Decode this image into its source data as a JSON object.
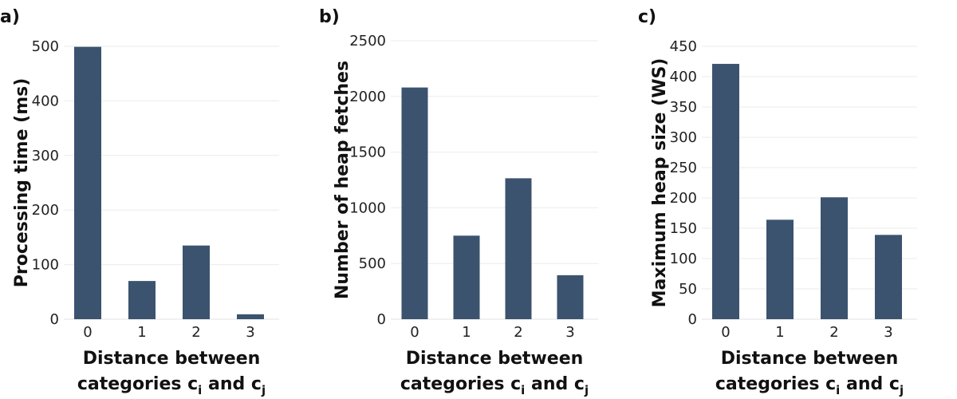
{
  "chart_data": [
    {
      "type": "bar",
      "panel_label": "a)",
      "categories": [
        "0",
        "1",
        "2",
        "3"
      ],
      "values": [
        499,
        70,
        135,
        9
      ],
      "ylabel": "Processing time (ms)",
      "xlabel_line1": "Distance between",
      "xlabel_line2": {
        "pre": "categories c",
        "sub1": "i",
        "mid": " and c",
        "sub2": "j"
      },
      "ylim": [
        0,
        500
      ],
      "yticks": [
        0,
        100,
        200,
        300,
        400,
        500
      ],
      "bar_color": "#3b536e",
      "grid": true
    },
    {
      "type": "bar",
      "panel_label": "b)",
      "categories": [
        "0",
        "1",
        "2",
        "3"
      ],
      "values": [
        2080,
        750,
        1265,
        395
      ],
      "ylabel": "Number of heap fetches",
      "xlabel_line1": "Distance between",
      "xlabel_line2": {
        "pre": "categories c",
        "sub1": "i",
        "mid": " and c",
        "sub2": "j"
      },
      "ylim": [
        0,
        2500
      ],
      "yticks": [
        0,
        500,
        1000,
        1500,
        2000,
        2500
      ],
      "bar_color": "#3b536e",
      "grid": true
    },
    {
      "type": "bar",
      "panel_label": "c)",
      "categories": [
        "0",
        "1",
        "2",
        "3"
      ],
      "values": [
        421,
        164,
        201,
        139
      ],
      "ylabel": "Maximum heap size (WS)",
      "xlabel_line1": "Distance between",
      "xlabel_line2": {
        "pre": "categories c",
        "sub1": "i",
        "mid": " and c",
        "sub2": "j"
      },
      "ylim": [
        0,
        450
      ],
      "yticks": [
        0,
        50,
        100,
        150,
        200,
        250,
        300,
        350,
        400,
        450
      ],
      "bar_color": "#3b536e",
      "grid": true
    }
  ]
}
